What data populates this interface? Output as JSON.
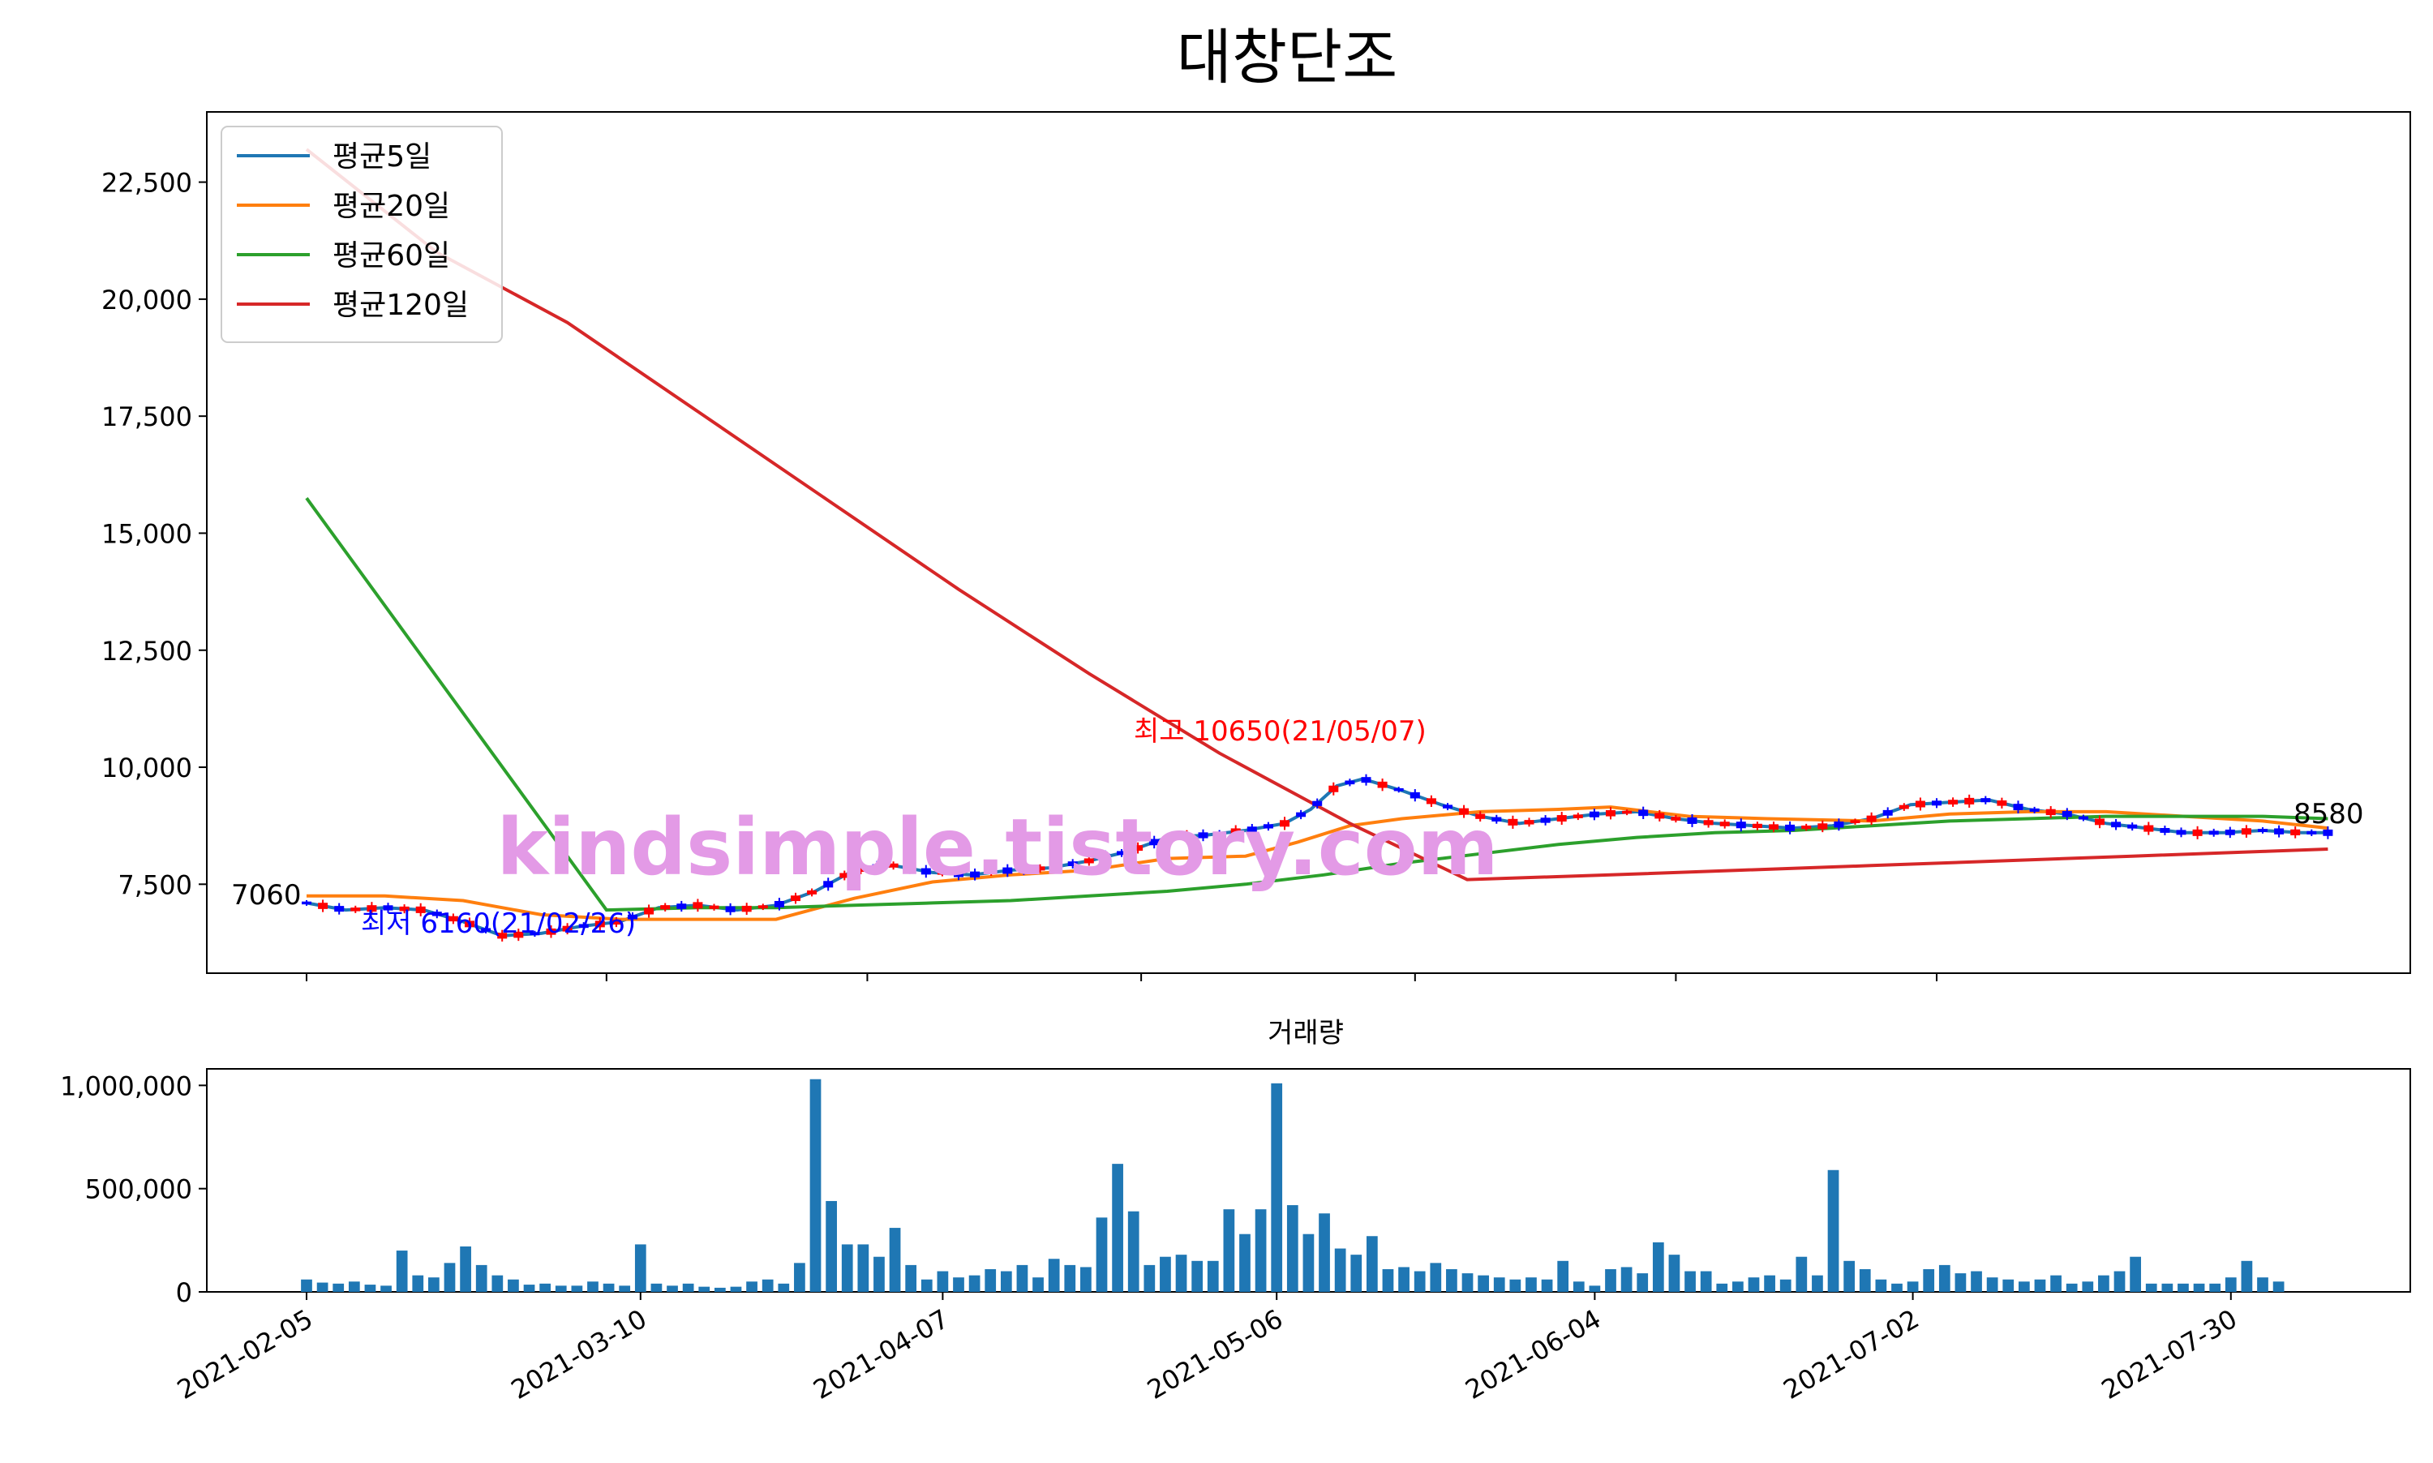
{
  "title": "대창단조",
  "watermark": "kindsimple.tistory.com",
  "colors": {
    "ma5": "#1f77b4",
    "ma20": "#ff7f0e",
    "ma60": "#2ca02c",
    "ma120": "#d62728",
    "up": "#ff0000",
    "down": "#0000ff",
    "volume": "#1f77b4",
    "watermark": "#e39ae6"
  },
  "chart_data": [
    {
      "type": "line",
      "title": "대창단조",
      "ylim": [
        5600,
        24000
      ],
      "yticks": [
        7500,
        10000,
        12500,
        15000,
        17500,
        20000,
        22500
      ],
      "ytick_labels": [
        "7,500",
        "10,000",
        "12,500",
        "15,000",
        "17,500",
        "20,000",
        "22,500"
      ],
      "xticks": [
        "2021-02-05",
        "2021-03-10",
        "2021-04-07",
        "2021-05-06",
        "2021-06-04",
        "2021-07-02",
        "2021-07-30"
      ],
      "legend_position": "top-left",
      "series": [
        {
          "name": "평균5일",
          "points": [
            [
              0,
              7100
            ],
            [
              3,
              6950
            ],
            [
              6,
              7000
            ],
            [
              9,
              6950
            ],
            [
              12,
              6700
            ],
            [
              15,
              6400
            ],
            [
              18,
              6450
            ],
            [
              21,
              6600
            ],
            [
              24,
              6700
            ],
            [
              27,
              7000
            ],
            [
              30,
              7050
            ],
            [
              33,
              6950
            ],
            [
              36,
              7050
            ],
            [
              39,
              7350
            ],
            [
              42,
              7800
            ],
            [
              45,
              7900
            ],
            [
              48,
              7750
            ],
            [
              51,
              7700
            ],
            [
              54,
              7800
            ],
            [
              57,
              7850
            ],
            [
              60,
              8000
            ],
            [
              63,
              8200
            ],
            [
              66,
              8500
            ],
            [
              69,
              8550
            ],
            [
              72,
              8650
            ],
            [
              75,
              8800
            ],
            [
              77,
              9100
            ],
            [
              79,
              9600
            ],
            [
              81,
              9750
            ],
            [
              84,
              9500
            ],
            [
              87,
              9200
            ],
            [
              90,
              8950
            ],
            [
              93,
              8800
            ],
            [
              96,
              8900
            ],
            [
              99,
              9000
            ],
            [
              102,
              9050
            ],
            [
              105,
              8900
            ],
            [
              108,
              8800
            ],
            [
              111,
              8750
            ],
            [
              114,
              8700
            ],
            [
              117,
              8750
            ],
            [
              120,
              8900
            ],
            [
              123,
              9200
            ],
            [
              126,
              9250
            ],
            [
              129,
              9300
            ],
            [
              132,
              9100
            ],
            [
              135,
              9000
            ],
            [
              138,
              8800
            ],
            [
              141,
              8700
            ],
            [
              144,
              8600
            ],
            [
              147,
              8600
            ],
            [
              150,
              8650
            ],
            [
              153,
              8600
            ],
            [
              155,
              8600
            ]
          ]
        },
        {
          "name": "평균20일",
          "points": [
            [
              0,
              7250
            ],
            [
              6,
              7250
            ],
            [
              12,
              7150
            ],
            [
              18,
              6850
            ],
            [
              24,
              6750
            ],
            [
              30,
              6750
            ],
            [
              36,
              6750
            ],
            [
              42,
              7200
            ],
            [
              48,
              7550
            ],
            [
              54,
              7700
            ],
            [
              60,
              7800
            ],
            [
              66,
              8050
            ],
            [
              72,
              8100
            ],
            [
              76,
              8400
            ],
            [
              80,
              8750
            ],
            [
              84,
              8900
            ],
            [
              90,
              9050
            ],
            [
              96,
              9100
            ],
            [
              100,
              9150
            ],
            [
              106,
              8950
            ],
            [
              112,
              8900
            ],
            [
              120,
              8850
            ],
            [
              126,
              9000
            ],
            [
              132,
              9050
            ],
            [
              138,
              9050
            ],
            [
              144,
              8950
            ],
            [
              150,
              8850
            ],
            [
              155,
              8700
            ]
          ]
        },
        {
          "name": "평균60일",
          "points": [
            [
              0,
              15750
            ],
            [
              23,
              6950
            ],
            [
              30,
              7000
            ],
            [
              36,
              7000
            ],
            [
              42,
              7050
            ],
            [
              48,
              7100
            ],
            [
              54,
              7150
            ],
            [
              60,
              7250
            ],
            [
              66,
              7350
            ],
            [
              72,
              7500
            ],
            [
              78,
              7700
            ],
            [
              84,
              7950
            ],
            [
              90,
              8150
            ],
            [
              96,
              8350
            ],
            [
              102,
              8500
            ],
            [
              108,
              8600
            ],
            [
              114,
              8650
            ],
            [
              120,
              8750
            ],
            [
              126,
              8850
            ],
            [
              132,
              8900
            ],
            [
              138,
              8950
            ],
            [
              144,
              8950
            ],
            [
              150,
              8950
            ],
            [
              155,
              8900
            ]
          ]
        },
        {
          "name": "평균120일",
          "points": [
            [
              0,
              23200
            ],
            [
              10,
              21000
            ],
            [
              20,
              19500
            ],
            [
              30,
              17600
            ],
            [
              40,
              15700
            ],
            [
              50,
              13800
            ],
            [
              60,
              12000
            ],
            [
              70,
              10300
            ],
            [
              80,
              8800
            ],
            [
              89,
              7600
            ],
            [
              100,
              7700
            ],
            [
              110,
              7800
            ],
            [
              120,
              7900
            ],
            [
              130,
              8000
            ],
            [
              140,
              8100
            ],
            [
              150,
              8200
            ],
            [
              155,
              8250
            ]
          ]
        }
      ],
      "annotations": [
        {
          "label": "최고 10650(21/05/07)",
          "x": 78,
          "y": 10650,
          "color": "#ff0000"
        },
        {
          "label": "최저 6160(21/02/26)",
          "x": 14,
          "y": 6160,
          "color": "#0000ff"
        },
        {
          "label": "7060",
          "x": 0,
          "y": 7060,
          "color": "#000000"
        },
        {
          "label": "8580",
          "x": 155,
          "y": 8580,
          "color": "#000000"
        }
      ]
    },
    {
      "type": "bar",
      "title": "거래량",
      "ylim": [
        0,
        1080000
      ],
      "yticks": [
        0,
        500000,
        1000000
      ],
      "ytick_labels": [
        "0",
        "500,000",
        "1,000,000"
      ],
      "xticks": [
        "2021-02-05",
        "2021-03-10",
        "2021-04-07",
        "2021-05-06",
        "2021-06-04",
        "2021-07-02",
        "2021-07-30"
      ],
      "values": [
        60000,
        45000,
        40000,
        50000,
        35000,
        30000,
        200000,
        80000,
        70000,
        140000,
        220000,
        130000,
        80000,
        60000,
        35000,
        40000,
        30000,
        30000,
        50000,
        40000,
        30000,
        230000,
        40000,
        30000,
        40000,
        25000,
        20000,
        25000,
        50000,
        60000,
        40000,
        140000,
        1030000,
        440000,
        230000,
        230000,
        170000,
        310000,
        130000,
        60000,
        100000,
        70000,
        80000,
        110000,
        100000,
        130000,
        70000,
        160000,
        130000,
        120000,
        360000,
        620000,
        390000,
        130000,
        170000,
        180000,
        150000,
        150000,
        400000,
        280000,
        400000,
        1010000,
        420000,
        280000,
        380000,
        210000,
        180000,
        270000,
        110000,
        120000,
        100000,
        140000,
        110000,
        90000,
        80000,
        70000,
        60000,
        70000,
        60000,
        150000,
        50000,
        30000,
        110000,
        120000,
        90000,
        240000,
        180000,
        100000,
        100000,
        40000,
        50000,
        70000,
        80000,
        60000,
        170000,
        80000,
        590000,
        150000,
        110000,
        60000,
        40000,
        50000,
        110000,
        130000,
        90000,
        100000,
        70000,
        60000,
        50000,
        60000,
        80000,
        40000,
        50000,
        80000,
        100000,
        170000,
        40000,
        40000,
        40000,
        40000,
        40000,
        70000,
        150000,
        70000,
        50000
      ]
    }
  ]
}
